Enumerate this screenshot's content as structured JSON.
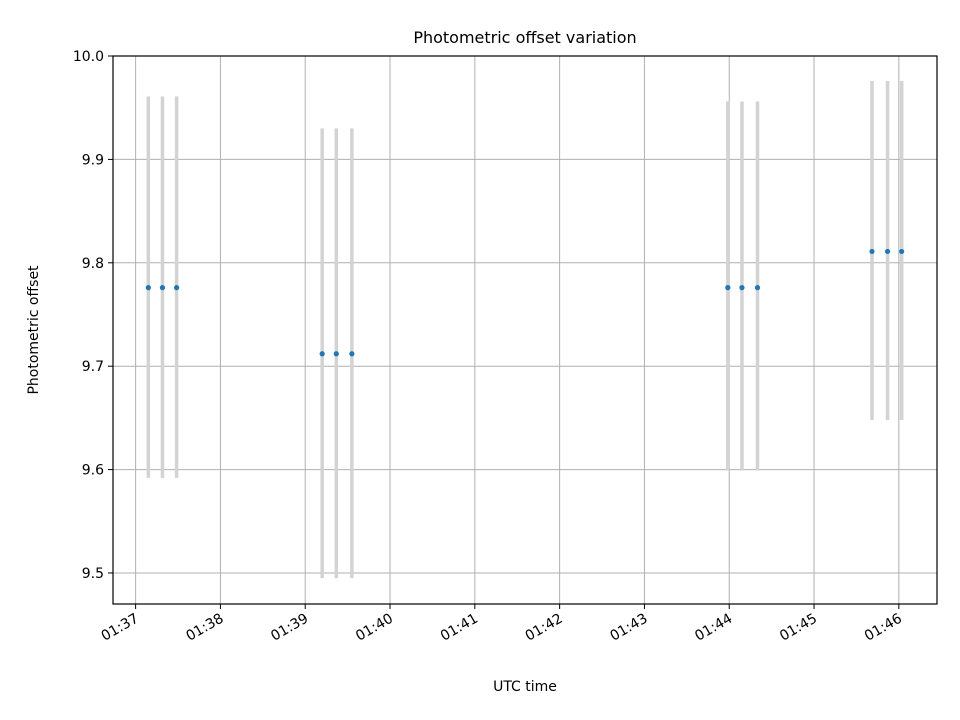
{
  "chart_data": {
    "type": "scatter",
    "title": "Photometric offset variation",
    "xlabel": "UTC time",
    "ylabel": "Photometric offset",
    "x_tick_labels": [
      "01:37",
      "01:38",
      "01:39",
      "01:40",
      "01:41",
      "01:42",
      "01:43",
      "01:44",
      "01:45",
      "01:46"
    ],
    "y_tick_labels": [
      "9.5",
      "9.6",
      "9.7",
      "9.8",
      "9.9",
      "10.0"
    ],
    "xlim": [
      "01:36:44",
      "01:46:27"
    ],
    "ylim": [
      9.47,
      10.0
    ],
    "grid": true,
    "legend": "none",
    "marker_color": "#1f77b4",
    "errorbar_color": "#d3d3d3",
    "points": [
      {
        "x": "01:37:09",
        "y": 9.776,
        "yerr_low": 9.592,
        "yerr_high": 9.961
      },
      {
        "x": "01:37:19",
        "y": 9.776,
        "yerr_low": 9.592,
        "yerr_high": 9.961
      },
      {
        "x": "01:37:29",
        "y": 9.776,
        "yerr_low": 9.592,
        "yerr_high": 9.961
      },
      {
        "x": "01:39:12",
        "y": 9.712,
        "yerr_low": 9.495,
        "yerr_high": 9.93
      },
      {
        "x": "01:39:22",
        "y": 9.712,
        "yerr_low": 9.495,
        "yerr_high": 9.93
      },
      {
        "x": "01:39:33",
        "y": 9.712,
        "yerr_low": 9.495,
        "yerr_high": 9.93
      },
      {
        "x": "01:43:59",
        "y": 9.776,
        "yerr_low": 9.599,
        "yerr_high": 9.956
      },
      {
        "x": "01:44:09",
        "y": 9.776,
        "yerr_low": 9.599,
        "yerr_high": 9.956
      },
      {
        "x": "01:44:20",
        "y": 9.776,
        "yerr_low": 9.599,
        "yerr_high": 9.956
      },
      {
        "x": "01:45:41",
        "y": 9.811,
        "yerr_low": 9.648,
        "yerr_high": 9.976
      },
      {
        "x": "01:45:52",
        "y": 9.811,
        "yerr_low": 9.648,
        "yerr_high": 9.976
      },
      {
        "x": "01:46:02",
        "y": 9.811,
        "yerr_low": 9.648,
        "yerr_high": 9.976
      }
    ]
  }
}
